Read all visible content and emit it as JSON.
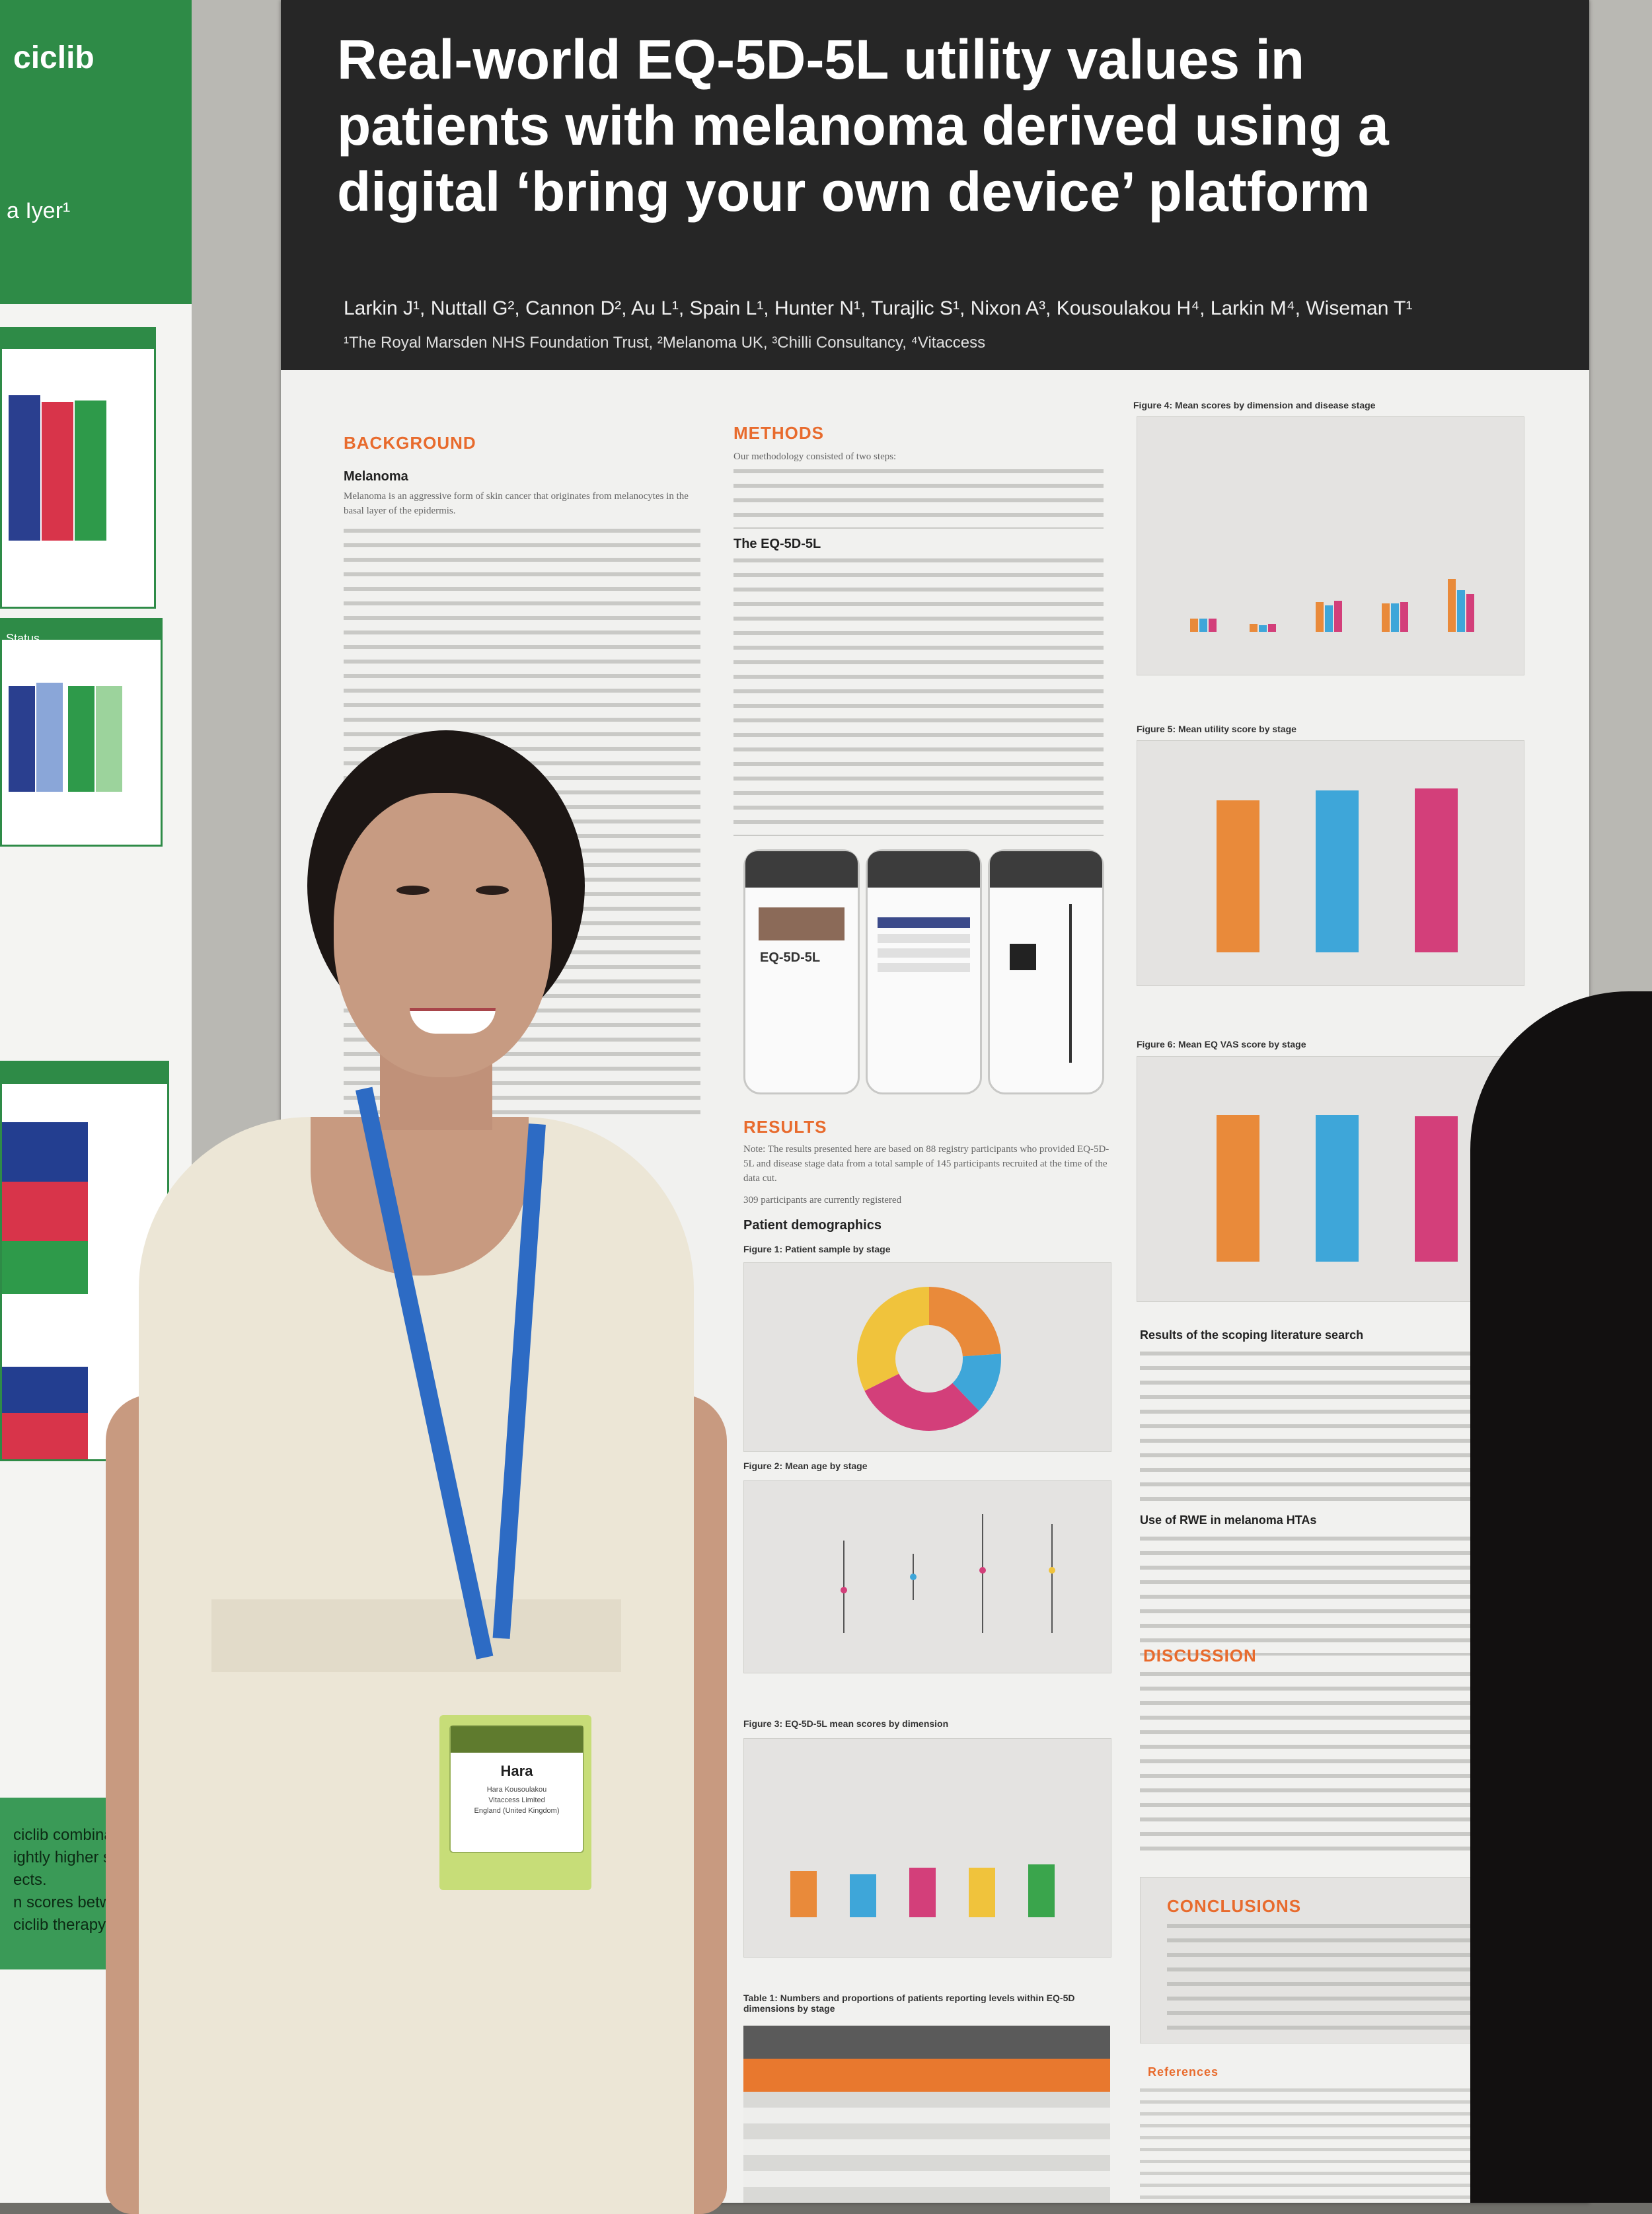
{
  "poster": {
    "title_lines": [
      "Real-world EQ-5D-5L utility values in",
      "patients with melanoma derived using a",
      "digital ‘bring your own device’ platform"
    ],
    "authors": "Larkin J¹, Nuttall G², Cannon D², Au L¹, Spain L¹, Hunter N¹, Turajlic S¹, Nixon A³, Kousoulakou H⁴, Larkin M⁴, Wiseman T¹",
    "affiliations": "¹The Royal Marsden NHS Foundation Trust, ²Melanoma UK, ³Chilli Consultancy, ⁴Vitaccess",
    "background": {
      "heading": "BACKGROUND",
      "subheading": "Melanoma",
      "text": "Melanoma is an aggressive form of skin cancer that originates from melanocytes in the basal layer of the epidermis."
    },
    "methods": {
      "heading": "METHODS",
      "intro": "Our methodology consisted of two steps:",
      "subheading": "The EQ-5D-5L"
    },
    "app_logo": "EQ-5D-5L",
    "results": {
      "heading": "RESULTS",
      "note": "Note: The results presented here are based on 88 registry participants who provided EQ-5D-5L and disease stage data from a total sample of 145 participants recruited at the time of the data cut.",
      "count": "309 participants are currently registered",
      "demographics": "Patient demographics"
    },
    "figures": {
      "fig1": "Figure 1: Patient sample by stage",
      "fig2": "Figure 2: Mean age by stage",
      "fig3": "Figure 3: EQ-5D-5L mean scores by dimension",
      "fig4": "Figure 4: Mean scores by dimension and disease stage",
      "fig5": "Figure 5: Mean utility score by stage",
      "fig6": "Figure 6: Mean EQ VAS score by stage",
      "table1": "Table 1: Numbers and proportions of patients reporting levels within EQ-5D dimensions by stage"
    },
    "right_col": {
      "scoping": "Results of the scoping literature search",
      "rwe": "Use of RWE in melanoma HTAs",
      "discussion": "DISCUSSION",
      "conclusions": "CONCLUSIONS",
      "references": "References"
    }
  },
  "left_poster": {
    "title": "ciclib",
    "sub": "a Iyer¹",
    "status_label": "Status",
    "footer_lines": [
      "ciclib combination",
      "ightly higher scores",
      "ects.",
      "n scores between",
      "ciclib therapy and “felt”"
    ]
  },
  "badge": {
    "name": "Hara",
    "line2": "Hara Kousoulakou",
    "line3": "Vitaccess Limited",
    "line4": "England (United Kingdom)"
  },
  "colors": {
    "orange": "#e98a3a",
    "blue": "#3ea6d9",
    "pink": "#d33f7a",
    "yellow": "#f0c33c",
    "green": "#3aa54c"
  }
}
